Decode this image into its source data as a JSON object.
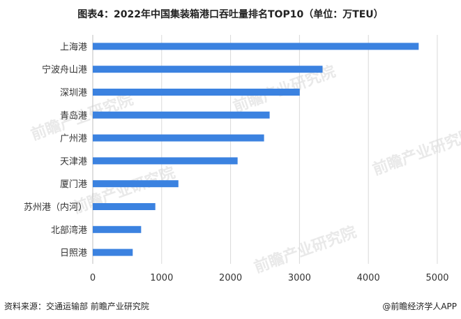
{
  "title": "图表4：2022年中国集装箱港口吞吐量排名TOP10（单位：万TEU）",
  "footer": {
    "source": "资料来源：交通运输部 前瞻产业研究院",
    "brand": "@前瞻经济学人APP"
  },
  "watermark": "前瞻产业研究院",
  "colors": {
    "bar": "#3b82e0",
    "grid": "#d9d9d9",
    "axis": "#bfbfbf"
  },
  "chart_data": {
    "type": "bar",
    "orientation": "horizontal",
    "categories": [
      "上海港",
      "宁波舟山港",
      "深圳港",
      "青岛港",
      "广州港",
      "天津港",
      "厦门港",
      "苏州港（内河）",
      "北部湾港",
      "日照港"
    ],
    "values": [
      4730,
      3335,
      3004,
      2567,
      2486,
      2102,
      1243,
      908,
      702,
      580
    ],
    "xlim": [
      0,
      5000
    ],
    "xticks": [
      "0",
      "1000",
      "2000",
      "3000",
      "4000",
      "5000"
    ],
    "grid": true
  }
}
